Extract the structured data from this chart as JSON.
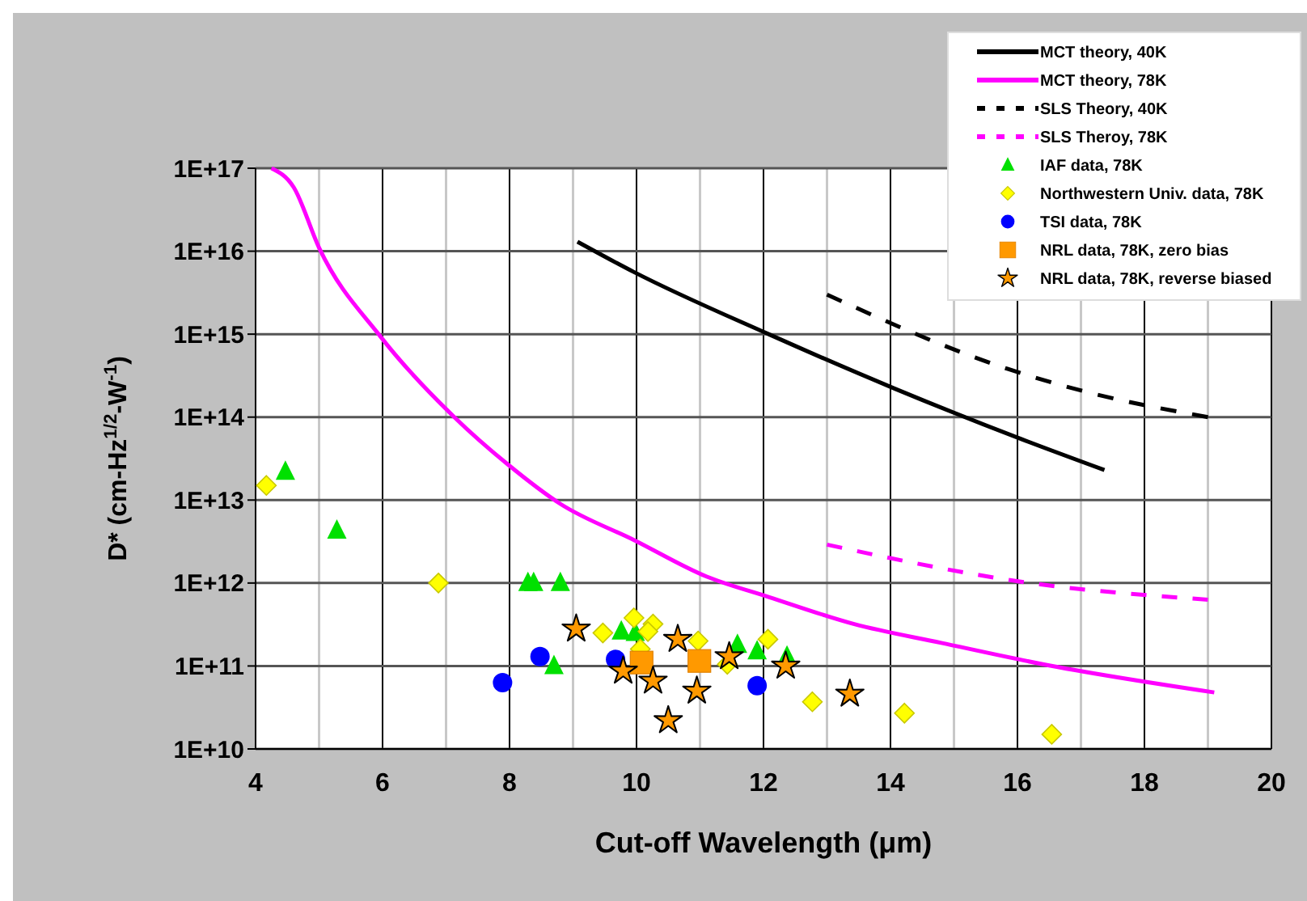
{
  "chart_data": {
    "type": "scatter",
    "xlabel": "Cut-off Wavelength (μm)",
    "ylabel": "D* (cm-Hz$^{1/2}$-W$^{-1}$)",
    "log": "y",
    "grid": true,
    "legend": "top right",
    "xlim": [
      4,
      20
    ],
    "xticks": [
      4,
      {
        "value": 5,
        "label": null
      },
      6,
      {
        "value": 7,
        "label": null
      },
      8,
      {
        "value": 9,
        "label": null
      },
      10,
      {
        "value": 11,
        "label": null
      },
      12,
      {
        "value": 13,
        "label": null
      },
      14,
      {
        "value": 15,
        "label": null
      },
      16,
      {
        "value": 17,
        "label": null
      },
      18,
      {
        "value": 19,
        "label": null
      },
      20
    ],
    "ylim": [
      10000000000.0,
      1e+17
    ],
    "yticks": [
      {
        "value": 10000000000.0,
        "label": "1E+10"
      },
      {
        "value": 100000000000.0,
        "label": "1E+11"
      },
      {
        "value": 1000000000000.0,
        "label": "1E+12"
      },
      {
        "value": 10000000000000.0,
        "label": "1E+13"
      },
      {
        "value": 100000000000000.0,
        "label": "1E+14"
      },
      {
        "value": 1000000000000000.0,
        "label": "1E+15"
      },
      {
        "value": 1e+16,
        "label": "1E+16"
      },
      {
        "value": 1e+17,
        "label": "1E+17"
      }
    ],
    "series": [
      {
        "name": "MCT theory, 40K",
        "type": "line",
        "color": "#000000",
        "line_style": "solid",
        "marker": "none",
        "x": [
          9.07,
          9.96,
          12.08,
          14.07,
          16.07,
          17.37
        ],
        "values": [
          1.3e+16,
          5600000000000000.0,
          1000000000000000.0,
          220000000000000.0,
          54000000000000.0,
          23000000000000.0
        ]
      },
      {
        "name": "MCT theory, 78K",
        "type": "line",
        "color": "#ff00ff",
        "line_style": "solid",
        "marker": "none",
        "x": [
          4.25,
          4.6,
          5.0,
          5.97,
          7.13,
          7.97,
          8.8,
          9.96,
          11.1,
          12.08,
          13.43,
          14.8,
          16.4,
          19.1
        ],
        "values": [
          1e+17,
          5.9e+16,
          1.1e+16,
          930000000000000.0,
          100000000000000.0,
          27000000000000.0,
          9000000000000.0,
          3300000000000.0,
          1200000000000.0,
          680000000000.0,
          320000000000.0,
          190000000000.0,
          105000000000.0,
          48000000000.0
        ]
      },
      {
        "name": "SLS Theory, 40K",
        "type": "line",
        "color": "#000000",
        "line_style": "dashed",
        "marker": "none",
        "x": [
          13.0,
          15.85,
          17.1,
          19.0
        ],
        "values": [
          3000000000000000.0,
          380000000000000.0,
          200000000000000.0,
          100000000000000.0
        ]
      },
      {
        "name": "SLS Theroy, 78K",
        "type": "line",
        "color": "#ff00ff",
        "line_style": "dashed",
        "marker": "none",
        "x": [
          13.0,
          16.2,
          19.0
        ],
        "values": [
          2900000000000.0,
          1000000000000.0,
          630000000000.0
        ]
      },
      {
        "name": "IAF data, 78K",
        "color": "#00e000",
        "marker": "triangle",
        "x": [
          4.47,
          5.28,
          8.29,
          8.38,
          8.8,
          8.7,
          9.76,
          9.98,
          11.59,
          11.9,
          12.37
        ],
        "values": [
          22000000000000.0,
          4300000000000.0,
          1000000000000.0,
          1000000000000.0,
          1000000000000.0,
          100000000000.0,
          260000000000.0,
          250000000000.0,
          180000000000.0,
          150000000000.0,
          130000000000.0
        ]
      },
      {
        "name": "Northwestern Univ. data, 78K",
        "color": "#ffff00",
        "marker": "diamond",
        "x": [
          4.17,
          6.88,
          9.47,
          9.96,
          10.26,
          10.18,
          10.06,
          10.97,
          11.43,
          12.07,
          12.77,
          14.22,
          16.54
        ],
        "values": [
          15000000000000.0,
          1000000000000.0,
          250000000000.0,
          380000000000.0,
          320000000000.0,
          260000000000.0,
          160000000000.0,
          200000000000.0,
          105000000000.0,
          210000000000.0,
          37000000000.0,
          27000000000.0,
          15000000000.0
        ]
      },
      {
        "name": "TSI data, 78K",
        "color": "#0000ff",
        "marker": "circle",
        "x": [
          7.89,
          8.48,
          9.67,
          11.9
        ],
        "values": [
          63000000000.0,
          130000000000.0,
          120000000000.0,
          58000000000.0
        ]
      },
      {
        "name": "NRL data, 78K, zero bias",
        "color": "#ff9900",
        "marker": "square",
        "x": [
          10.08,
          10.99
        ],
        "values": [
          110000000000.0,
          115000000000.0
        ]
      },
      {
        "name": "NRL data, 78K, reverse biased",
        "color": "#ff9900",
        "marker": "star",
        "x": [
          9.05,
          9.79,
          10.26,
          10.65,
          10.95,
          10.5,
          11.46,
          12.35,
          13.36
        ],
        "values": [
          280000000000.0,
          87000000000.0,
          66000000000.0,
          210000000000.0,
          50000000000.0,
          22000000000.0,
          130000000000.0,
          100000000000.0,
          46000000000.0
        ]
      }
    ]
  }
}
